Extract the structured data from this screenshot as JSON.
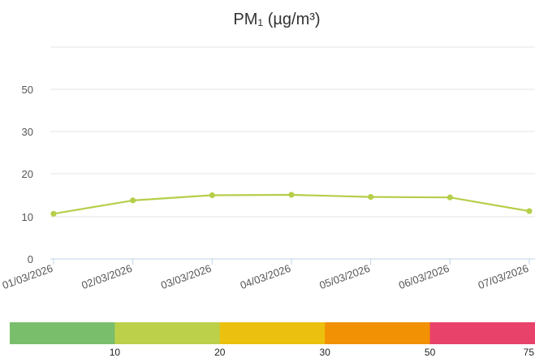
{
  "chart_data": {
    "type": "line",
    "title": "PM₁ (µg/m³)",
    "x": [
      "01/03/2026",
      "02/03/2026",
      "03/03/2026",
      "04/03/2026",
      "05/03/2026",
      "06/03/2026",
      "07/03/2026"
    ],
    "series": [
      {
        "values": [
          10.7,
          13.8,
          15.0,
          15.1,
          14.6,
          14.5,
          11.3
        ],
        "color": "#b5cf4a"
      }
    ],
    "y_ticks": [
      0,
      10,
      20,
      30,
      50
    ],
    "ylim": [
      0,
      60
    ],
    "grid": true,
    "grid_color": "#e6e6e6",
    "axis_color": "#c0d4e8"
  },
  "scale": {
    "segments": [
      {
        "color": "#79bf6b"
      },
      {
        "color": "#bcd04a"
      },
      {
        "color": "#ecc00e"
      },
      {
        "color": "#f29103"
      },
      {
        "color": "#e8416a"
      }
    ],
    "labels": [
      "10",
      "20",
      "30",
      "50",
      "75"
    ]
  }
}
